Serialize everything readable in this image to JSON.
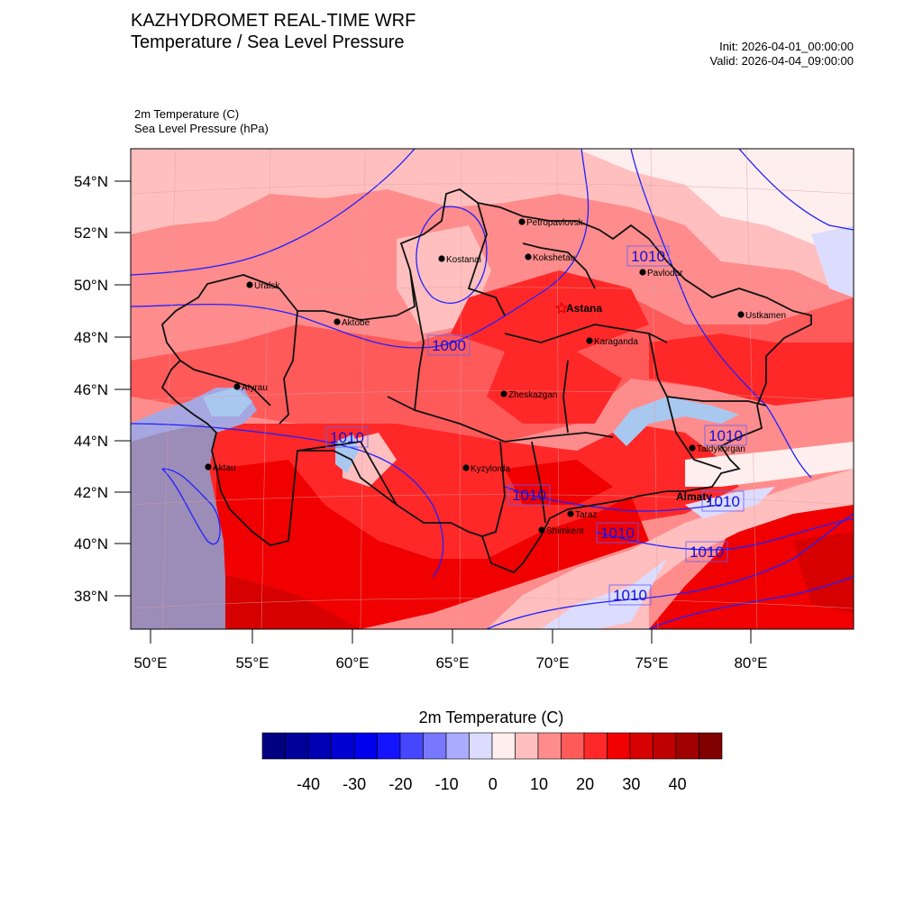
{
  "header": {
    "title": "KAZHYDROMET REAL-TIME WRF",
    "subtitle": "Temperature / Sea Level Pressure",
    "init": "Init: 2026-04-01_00:00:00",
    "valid": "Valid: 2026-04-04_09:00:00"
  },
  "variables": {
    "var1": "2m Temperature   (C)",
    "var2": "Sea Level Pressure   (hPa)"
  },
  "axes": {
    "lat_labels": [
      "54°N",
      "52°N",
      "50°N",
      "48°N",
      "46°N",
      "44°N",
      "42°N",
      "40°N",
      "38°N"
    ],
    "lon_labels": [
      "50°E",
      "55°E",
      "60°E",
      "65°E",
      "70°E",
      "75°E",
      "80°E"
    ]
  },
  "cities": [
    {
      "name": "Petropavlovsk"
    },
    {
      "name": "Kostanai"
    },
    {
      "name": "Kokshetau"
    },
    {
      "name": "Pavlodar"
    },
    {
      "name": "Uralsk"
    },
    {
      "name": "Astana",
      "capital": true
    },
    {
      "name": "Aktobe"
    },
    {
      "name": "Ustkamen"
    },
    {
      "name": "Karaganda"
    },
    {
      "name": "Atyrau"
    },
    {
      "name": "Zheskazgan"
    },
    {
      "name": "Taldykorgan"
    },
    {
      "name": "Aktau"
    },
    {
      "name": "Kyzylorda"
    },
    {
      "name": "Almaty",
      "bold": true
    },
    {
      "name": "Taraz"
    },
    {
      "name": "Shimkent"
    }
  ],
  "isobar_labels": [
    "1010",
    "1000",
    "1010",
    "1010",
    "1010",
    "1010",
    "1010",
    "1010",
    "1010"
  ],
  "colorbar": {
    "title": "2m Temperature  (C)",
    "colors": [
      "#000080",
      "#00009a",
      "#0000b4",
      "#0000d2",
      "#0000ec",
      "#1414ff",
      "#4646ff",
      "#7878ff",
      "#aaaaff",
      "#dcdcff",
      "#ffeeee",
      "#ffbfbf",
      "#ff8c8c",
      "#ff5a5a",
      "#ff2828",
      "#f00000",
      "#d70000",
      "#be0000",
      "#a00000",
      "#800000"
    ],
    "labels": [
      "-40",
      "-30",
      "-20",
      "-10",
      "0",
      "10",
      "20",
      "30",
      "40"
    ]
  }
}
